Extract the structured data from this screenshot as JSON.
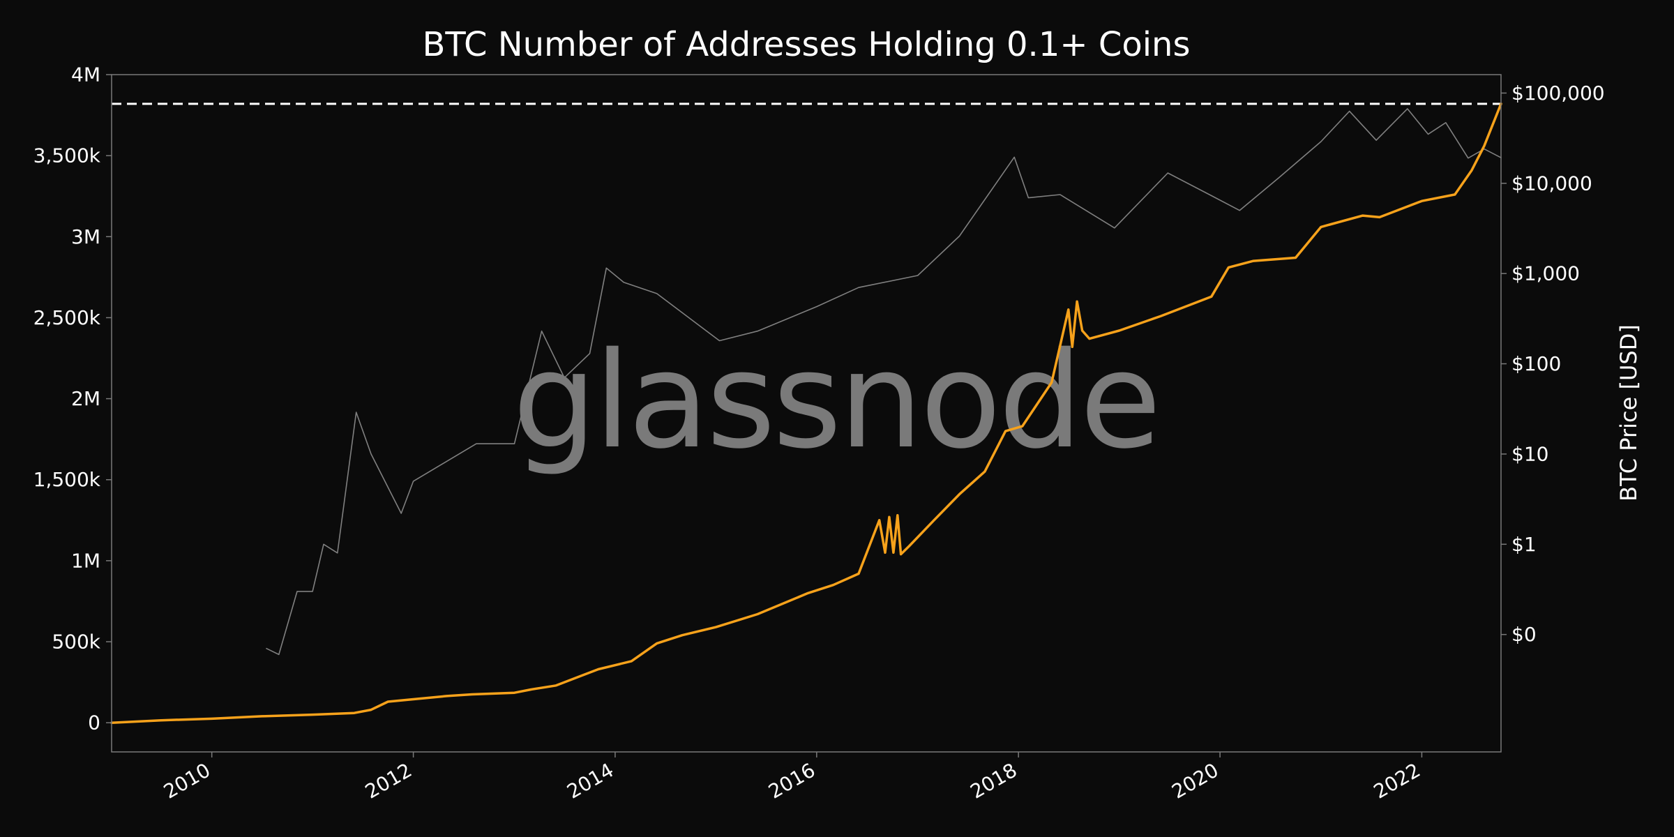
{
  "chart_data": {
    "type": "line",
    "title": "BTC Number of Addresses Holding 0.1+ Coins",
    "xlabel": "",
    "ylabel_left": "",
    "ylabel_right": "BTC Price [USD]",
    "watermark": "glassnode",
    "x_range": [
      "2009-01-03",
      "2022-10-15"
    ],
    "x_ticks": [
      "2010",
      "2012",
      "2014",
      "2016",
      "2018",
      "2020",
      "2022"
    ],
    "ylim_left": [
      -180000,
      4000000
    ],
    "y_ticks_left": [
      {
        "value": 0,
        "label": "0"
      },
      {
        "value": 500000,
        "label": "500k"
      },
      {
        "value": 1000000,
        "label": "1M"
      },
      {
        "value": 1500000,
        "label": "1,500k"
      },
      {
        "value": 2000000,
        "label": "2M"
      },
      {
        "value": 2500000,
        "label": "2,500k"
      },
      {
        "value": 3000000,
        "label": "3M"
      },
      {
        "value": 3500000,
        "label": "3,500k"
      },
      {
        "value": 4000000,
        "label": "4M"
      }
    ],
    "y_scale_right": "log",
    "y_ticks_right": [
      {
        "value": 0.1,
        "label": "$0"
      },
      {
        "value": 1,
        "label": "$1"
      },
      {
        "value": 10,
        "label": "$10"
      },
      {
        "value": 100,
        "label": "$100"
      },
      {
        "value": 1000,
        "label": "$1,000"
      },
      {
        "value": 10000,
        "label": "$10,000"
      },
      {
        "value": 100000,
        "label": "$100,000"
      }
    ],
    "ylim_right": [
      0.005,
      160000
    ],
    "reference_line": {
      "axis": "left",
      "value": 3820000,
      "style": "dashed",
      "color": "#ffffff"
    },
    "series": [
      {
        "axis": "left",
        "color": "#f7a21b",
        "points": [
          [
            "2009-01-03",
            0
          ],
          [
            "2009-07-01",
            15000
          ],
          [
            "2010-01-01",
            25000
          ],
          [
            "2010-07-01",
            40000
          ],
          [
            "2011-01-01",
            50000
          ],
          [
            "2011-06-01",
            60000
          ],
          [
            "2011-08-01",
            80000
          ],
          [
            "2011-10-01",
            130000
          ],
          [
            "2012-01-01",
            145000
          ],
          [
            "2012-05-01",
            165000
          ],
          [
            "2012-08-01",
            175000
          ],
          [
            "2013-01-01",
            185000
          ],
          [
            "2013-03-01",
            205000
          ],
          [
            "2013-06-01",
            230000
          ],
          [
            "2013-09-01",
            290000
          ],
          [
            "2013-11-01",
            330000
          ],
          [
            "2014-03-01",
            380000
          ],
          [
            "2014-06-01",
            490000
          ],
          [
            "2014-09-01",
            540000
          ],
          [
            "2015-01-01",
            590000
          ],
          [
            "2015-06-01",
            670000
          ],
          [
            "2015-12-01",
            800000
          ],
          [
            "2016-03-01",
            850000
          ],
          [
            "2016-06-01",
            920000
          ],
          [
            "2016-08-15",
            1250000
          ],
          [
            "2016-09-05",
            1050000
          ],
          [
            "2016-09-20",
            1270000
          ],
          [
            "2016-10-05",
            1050000
          ],
          [
            "2016-10-20",
            1280000
          ],
          [
            "2016-11-01",
            1040000
          ],
          [
            "2016-12-01",
            1090000
          ],
          [
            "2017-03-01",
            1250000
          ],
          [
            "2017-06-01",
            1410000
          ],
          [
            "2017-09-01",
            1550000
          ],
          [
            "2017-11-15",
            1800000
          ],
          [
            "2018-01-15",
            1830000
          ],
          [
            "2018-05-01",
            2100000
          ],
          [
            "2018-07-01",
            2550000
          ],
          [
            "2018-07-15",
            2320000
          ],
          [
            "2018-08-01",
            2600000
          ],
          [
            "2018-08-20",
            2420000
          ],
          [
            "2018-09-15",
            2370000
          ],
          [
            "2019-01-01",
            2420000
          ],
          [
            "2019-06-01",
            2510000
          ],
          [
            "2019-12-01",
            2630000
          ],
          [
            "2020-02-01",
            2810000
          ],
          [
            "2020-05-01",
            2850000
          ],
          [
            "2020-10-01",
            2870000
          ],
          [
            "2021-01-01",
            3060000
          ],
          [
            "2021-06-01",
            3130000
          ],
          [
            "2021-08-01",
            3120000
          ],
          [
            "2022-01-01",
            3220000
          ],
          [
            "2022-05-01",
            3260000
          ],
          [
            "2022-07-01",
            3410000
          ],
          [
            "2022-08-15",
            3560000
          ],
          [
            "2022-10-15",
            3820000
          ]
        ]
      },
      {
        "axis": "right",
        "color": "#808080",
        "points": [
          [
            "2010-07-18",
            0.07
          ],
          [
            "2010-09-01",
            0.06
          ],
          [
            "2010-11-06",
            0.3
          ],
          [
            "2011-01-01",
            0.3
          ],
          [
            "2011-02-10",
            1.0
          ],
          [
            "2011-04-01",
            0.8
          ],
          [
            "2011-06-08",
            29
          ],
          [
            "2011-08-01",
            10
          ],
          [
            "2011-11-18",
            2.2
          ],
          [
            "2012-01-01",
            5
          ],
          [
            "2012-08-16",
            13
          ],
          [
            "2013-01-01",
            13
          ],
          [
            "2013-04-10",
            230
          ],
          [
            "2013-07-01",
            70
          ],
          [
            "2013-10-01",
            130
          ],
          [
            "2013-11-30",
            1150
          ],
          [
            "2014-02-01",
            800
          ],
          [
            "2014-06-01",
            600
          ],
          [
            "2015-01-14",
            180
          ],
          [
            "2015-06-01",
            230
          ],
          [
            "2016-01-01",
            430
          ],
          [
            "2016-06-01",
            700
          ],
          [
            "2017-01-01",
            950
          ],
          [
            "2017-06-01",
            2600
          ],
          [
            "2017-12-17",
            19500
          ],
          [
            "2018-02-06",
            6900
          ],
          [
            "2018-06-01",
            7500
          ],
          [
            "2018-12-15",
            3200
          ],
          [
            "2019-06-26",
            13000
          ],
          [
            "2019-12-01",
            7300
          ],
          [
            "2020-03-12",
            5000
          ],
          [
            "2020-08-01",
            11500
          ],
          [
            "2021-01-01",
            29000
          ],
          [
            "2021-04-14",
            63000
          ],
          [
            "2021-07-20",
            30000
          ],
          [
            "2021-11-10",
            67000
          ],
          [
            "2022-01-24",
            35000
          ],
          [
            "2022-03-29",
            47000
          ],
          [
            "2022-06-18",
            19000
          ],
          [
            "2022-08-15",
            24000
          ],
          [
            "2022-10-15",
            19200
          ]
        ]
      }
    ]
  }
}
